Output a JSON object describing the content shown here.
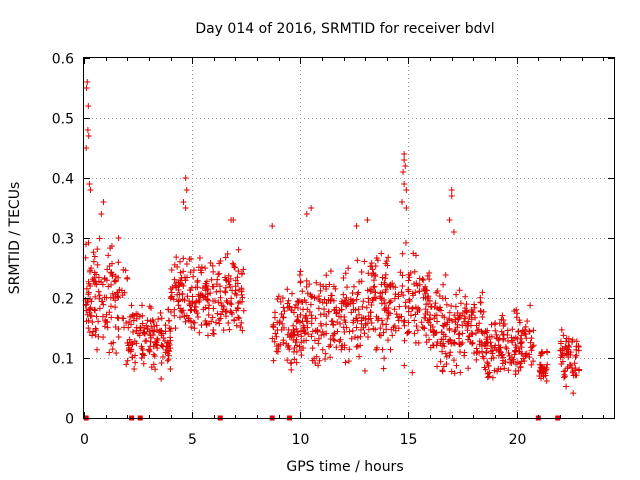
{
  "chart_data": {
    "type": "scatter",
    "title": "Day 014 of 2016, SRMTID for receiver bdvl",
    "xlabel": "GPS time / hours",
    "ylabel": "SRMTID / TECUs",
    "xlim": [
      0,
      24.5
    ],
    "ylim": [
      0,
      0.6
    ],
    "xticks": [
      0,
      5,
      10,
      15,
      20
    ],
    "xtick_labels": [
      "0",
      "5",
      "10",
      "15",
      "20"
    ],
    "yticks": [
      0,
      0.1,
      0.2,
      0.3,
      0.4,
      0.5,
      0.6
    ],
    "ytick_labels": [
      "0",
      "0.1",
      "0.2",
      "0.3",
      "0.4",
      "0.5",
      "0.6"
    ],
    "grid": true,
    "marker": "+",
    "color": "#e00000",
    "no_data_markers_x": [
      0.1,
      2.2,
      2.6,
      6.3,
      8.7,
      9.5,
      21.0,
      21.9
    ],
    "series": [
      {
        "name": "SRMTID",
        "segments": [
          {
            "t0": 0.05,
            "t1": 2.0,
            "base": 0.2,
            "spread": 0.08
          },
          {
            "t0": 2.0,
            "t1": 4.0,
            "base": 0.13,
            "spread": 0.05
          },
          {
            "t0": 4.0,
            "t1": 7.4,
            "base": 0.2,
            "spread": 0.06
          },
          {
            "t0": 8.7,
            "t1": 9.9,
            "base": 0.15,
            "spread": 0.06
          },
          {
            "t0": 9.9,
            "t1": 13.0,
            "base": 0.17,
            "spread": 0.07
          },
          {
            "t0": 13.0,
            "t1": 16.0,
            "base": 0.19,
            "spread": 0.08
          },
          {
            "t0": 16.0,
            "t1": 18.5,
            "base": 0.15,
            "spread": 0.06
          },
          {
            "t0": 18.5,
            "t1": 20.8,
            "base": 0.12,
            "spread": 0.05
          },
          {
            "t0": 21.0,
            "t1": 21.5,
            "base": 0.09,
            "spread": 0.025
          },
          {
            "t0": 22.0,
            "t1": 22.9,
            "base": 0.1,
            "spread": 0.04
          }
        ],
        "spikes": [
          {
            "x": 0.15,
            "y": 0.56
          },
          {
            "x": 0.12,
            "y": 0.55
          },
          {
            "x": 0.2,
            "y": 0.52
          },
          {
            "x": 0.18,
            "y": 0.48
          },
          {
            "x": 0.22,
            "y": 0.47
          },
          {
            "x": 0.1,
            "y": 0.45
          },
          {
            "x": 0.25,
            "y": 0.39
          },
          {
            "x": 0.3,
            "y": 0.38
          },
          {
            "x": 0.9,
            "y": 0.36
          },
          {
            "x": 0.8,
            "y": 0.34
          },
          {
            "x": 1.6,
            "y": 0.3
          },
          {
            "x": 4.7,
            "y": 0.4
          },
          {
            "x": 4.75,
            "y": 0.38
          },
          {
            "x": 4.6,
            "y": 0.36
          },
          {
            "x": 4.7,
            "y": 0.35
          },
          {
            "x": 6.8,
            "y": 0.33
          },
          {
            "x": 6.9,
            "y": 0.33
          },
          {
            "x": 8.7,
            "y": 0.32
          },
          {
            "x": 10.5,
            "y": 0.35
          },
          {
            "x": 10.3,
            "y": 0.34
          },
          {
            "x": 12.6,
            "y": 0.32
          },
          {
            "x": 13.1,
            "y": 0.33
          },
          {
            "x": 14.8,
            "y": 0.44
          },
          {
            "x": 14.8,
            "y": 0.43
          },
          {
            "x": 14.85,
            "y": 0.42
          },
          {
            "x": 14.75,
            "y": 0.41
          },
          {
            "x": 14.8,
            "y": 0.39
          },
          {
            "x": 14.9,
            "y": 0.38
          },
          {
            "x": 14.7,
            "y": 0.36
          },
          {
            "x": 14.9,
            "y": 0.35
          },
          {
            "x": 17.0,
            "y": 0.38
          },
          {
            "x": 17.0,
            "y": 0.37
          },
          {
            "x": 16.9,
            "y": 0.33
          },
          {
            "x": 17.1,
            "y": 0.31
          }
        ]
      }
    ]
  }
}
